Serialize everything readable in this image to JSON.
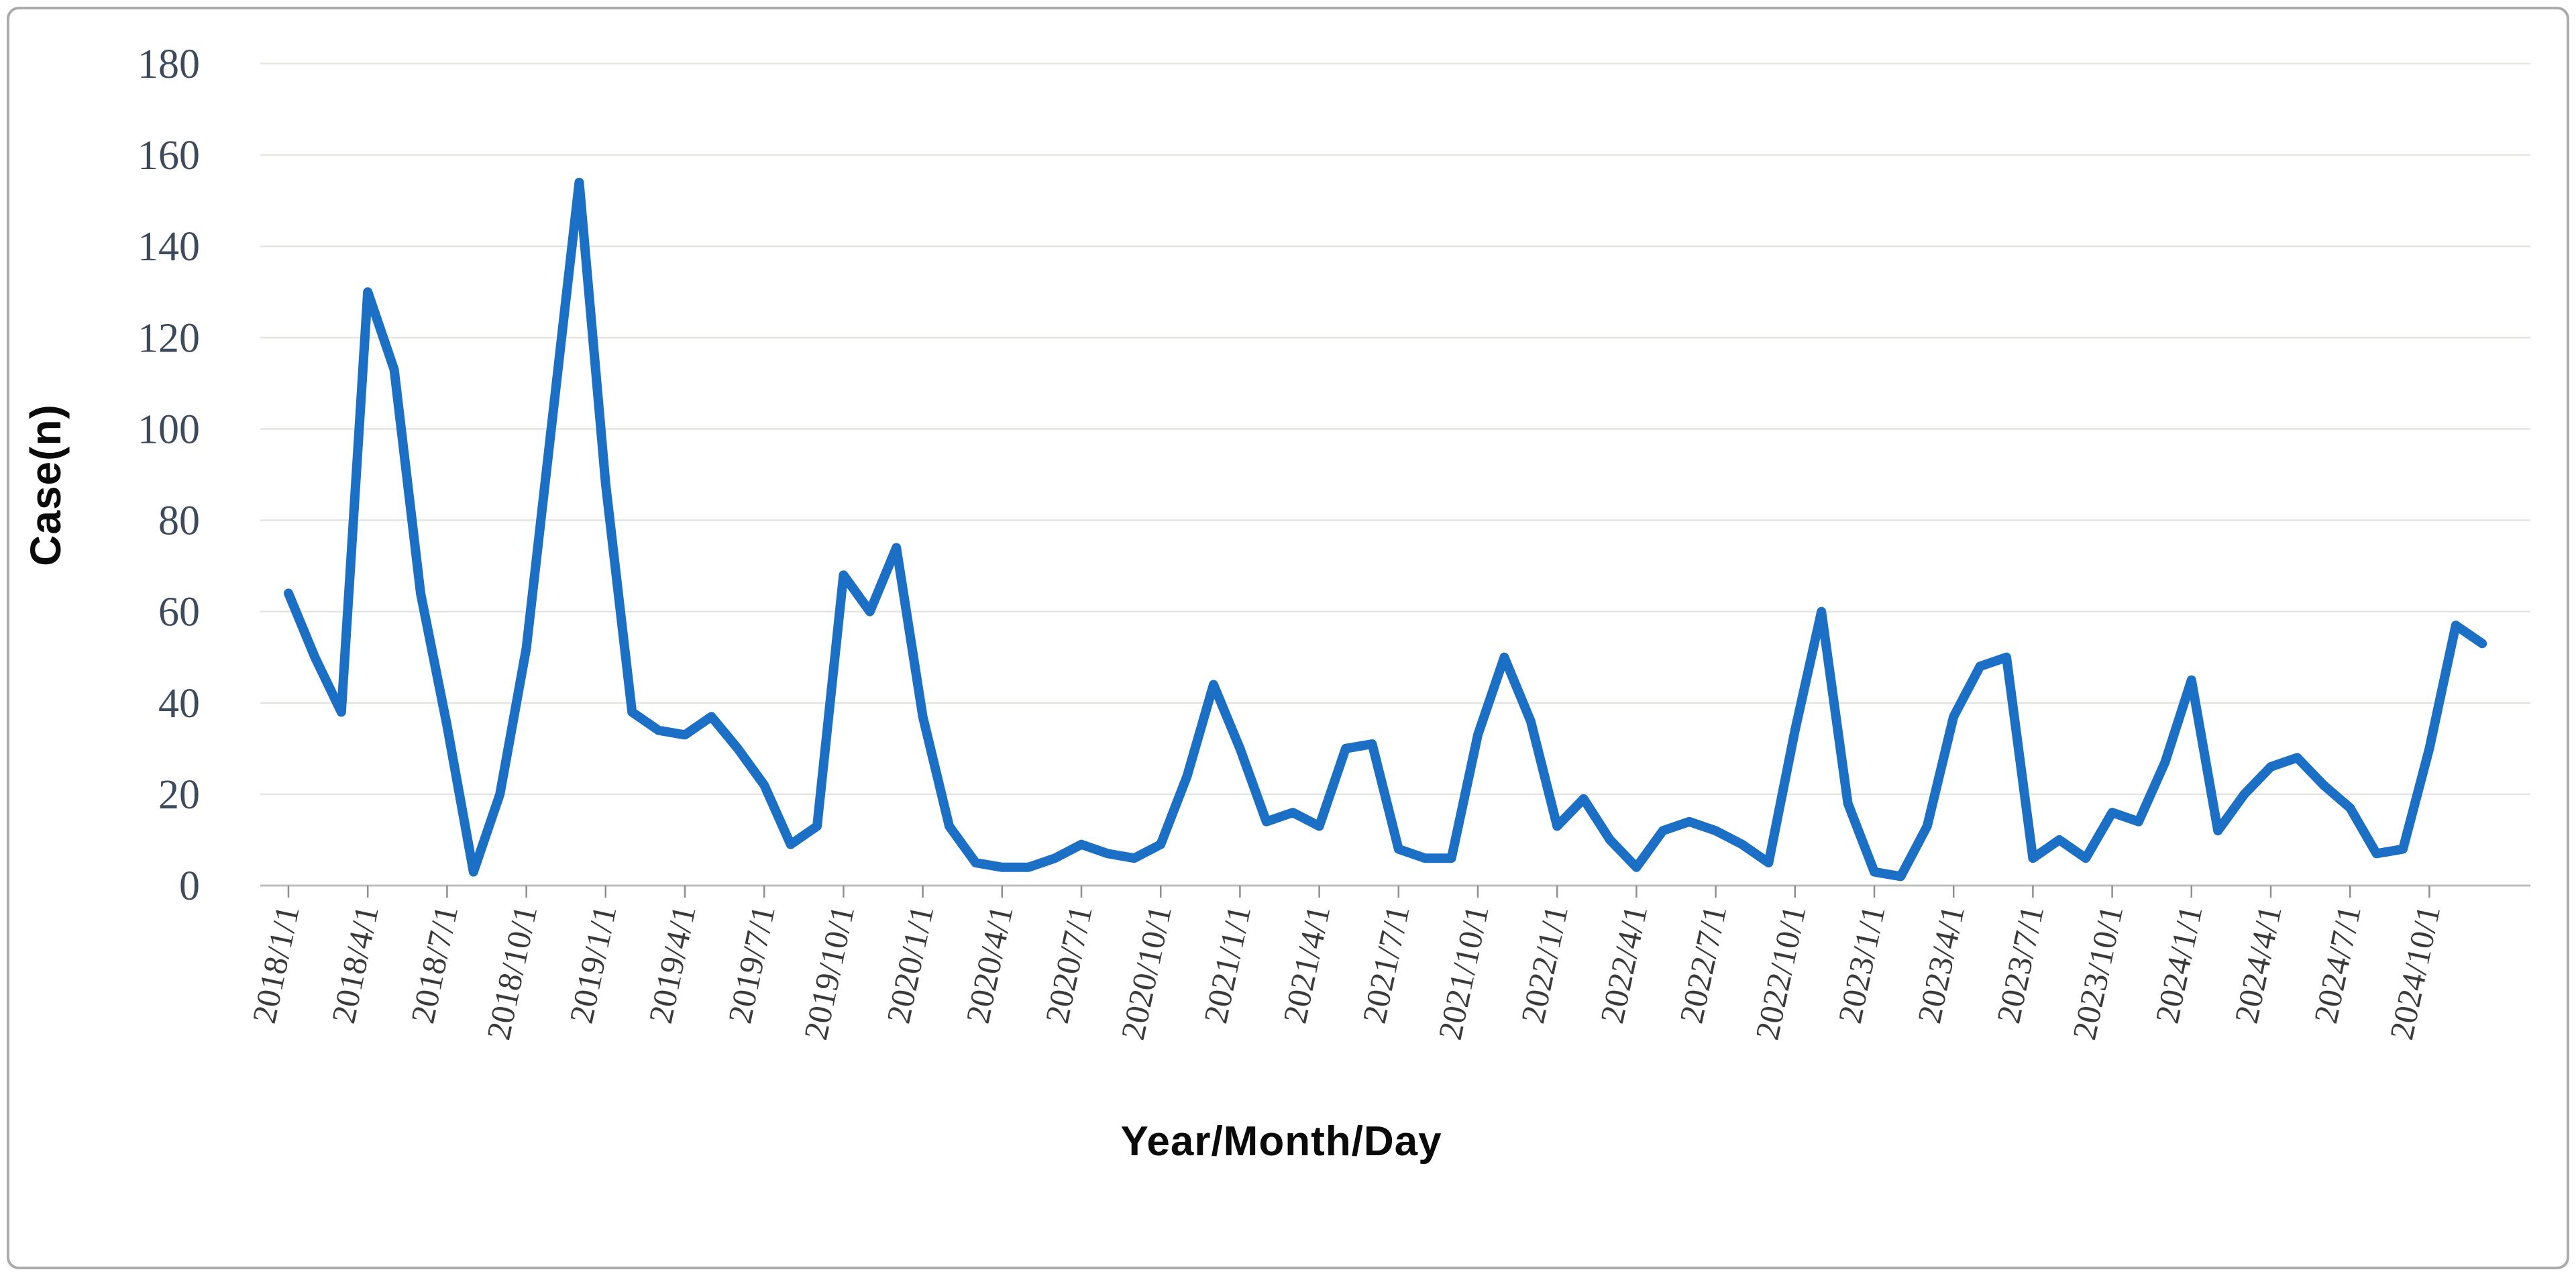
{
  "figure": {
    "background": "#ffffff",
    "frame_color": "#ababab"
  },
  "chart_data": {
    "type": "line",
    "title": "",
    "xlabel": "Year/Month/Day",
    "ylabel": "Case(n)",
    "ylim": [
      0,
      180
    ],
    "yticks": [
      0,
      20,
      40,
      60,
      80,
      100,
      120,
      140,
      160,
      180
    ],
    "x_label_every": 3,
    "legend": "none",
    "grid": "horizontal",
    "line_color": "#1B6FC4",
    "grid_color": "#e6e4de",
    "axis_line_color": "#bdbdbd",
    "tick_mark_color": "#8f8f8f",
    "ytick_text_color": "#3d4a5c",
    "xtick_text_color": "#3a3a3a",
    "x": [
      "2018/1/1",
      "2018/2/1",
      "2018/3/1",
      "2018/4/1",
      "2018/5/1",
      "2018/6/1",
      "2018/7/1",
      "2018/8/1",
      "2018/9/1",
      "2018/10/1",
      "2018/11/1",
      "2018/12/1",
      "2019/1/1",
      "2019/2/1",
      "2019/3/1",
      "2019/4/1",
      "2019/5/1",
      "2019/6/1",
      "2019/7/1",
      "2019/8/1",
      "2019/9/1",
      "2019/10/1",
      "2019/11/1",
      "2019/12/1",
      "2020/1/1",
      "2020/2/1",
      "2020/3/1",
      "2020/4/1",
      "2020/5/1",
      "2020/6/1",
      "2020/7/1",
      "2020/8/1",
      "2020/9/1",
      "2020/10/1",
      "2020/11/1",
      "2020/12/1",
      "2021/1/1",
      "2021/2/1",
      "2021/3/1",
      "2021/4/1",
      "2021/5/1",
      "2021/6/1",
      "2021/7/1",
      "2021/8/1",
      "2021/9/1",
      "2021/10/1",
      "2021/11/1",
      "2021/12/1",
      "2022/1/1",
      "2022/2/1",
      "2022/3/1",
      "2022/4/1",
      "2022/5/1",
      "2022/6/1",
      "2022/7/1",
      "2022/8/1",
      "2022/9/1",
      "2022/10/1",
      "2022/11/1",
      "2022/12/1",
      "2023/1/1",
      "2023/2/1",
      "2023/3/1",
      "2023/4/1",
      "2023/5/1",
      "2023/6/1",
      "2023/7/1",
      "2023/8/1",
      "2023/9/1",
      "2023/10/1",
      "2023/11/1",
      "2023/12/1",
      "2024/1/1",
      "2024/2/1",
      "2024/3/1",
      "2024/4/1",
      "2024/5/1",
      "2024/6/1",
      "2024/7/1",
      "2024/8/1",
      "2024/9/1",
      "2024/10/1",
      "2024/11/1",
      "2024/12/1"
    ],
    "values": [
      64,
      50,
      38,
      130,
      113,
      64,
      35,
      3,
      20,
      52,
      103,
      154,
      88,
      38,
      34,
      33,
      37,
      30,
      22,
      9,
      13,
      68,
      60,
      74,
      37,
      13,
      5,
      4,
      4,
      6,
      9,
      7,
      6,
      9,
      24,
      44,
      30,
      14,
      16,
      13,
      30,
      31,
      8,
      6,
      6,
      33,
      50,
      36,
      13,
      19,
      10,
      4,
      12,
      14,
      12,
      9,
      5,
      34,
      60,
      18,
      3,
      2,
      13,
      37,
      48,
      50,
      6,
      10,
      6,
      16,
      14,
      27,
      45,
      12,
      20,
      26,
      28,
      22,
      17,
      7,
      8,
      30,
      57,
      53
    ]
  }
}
